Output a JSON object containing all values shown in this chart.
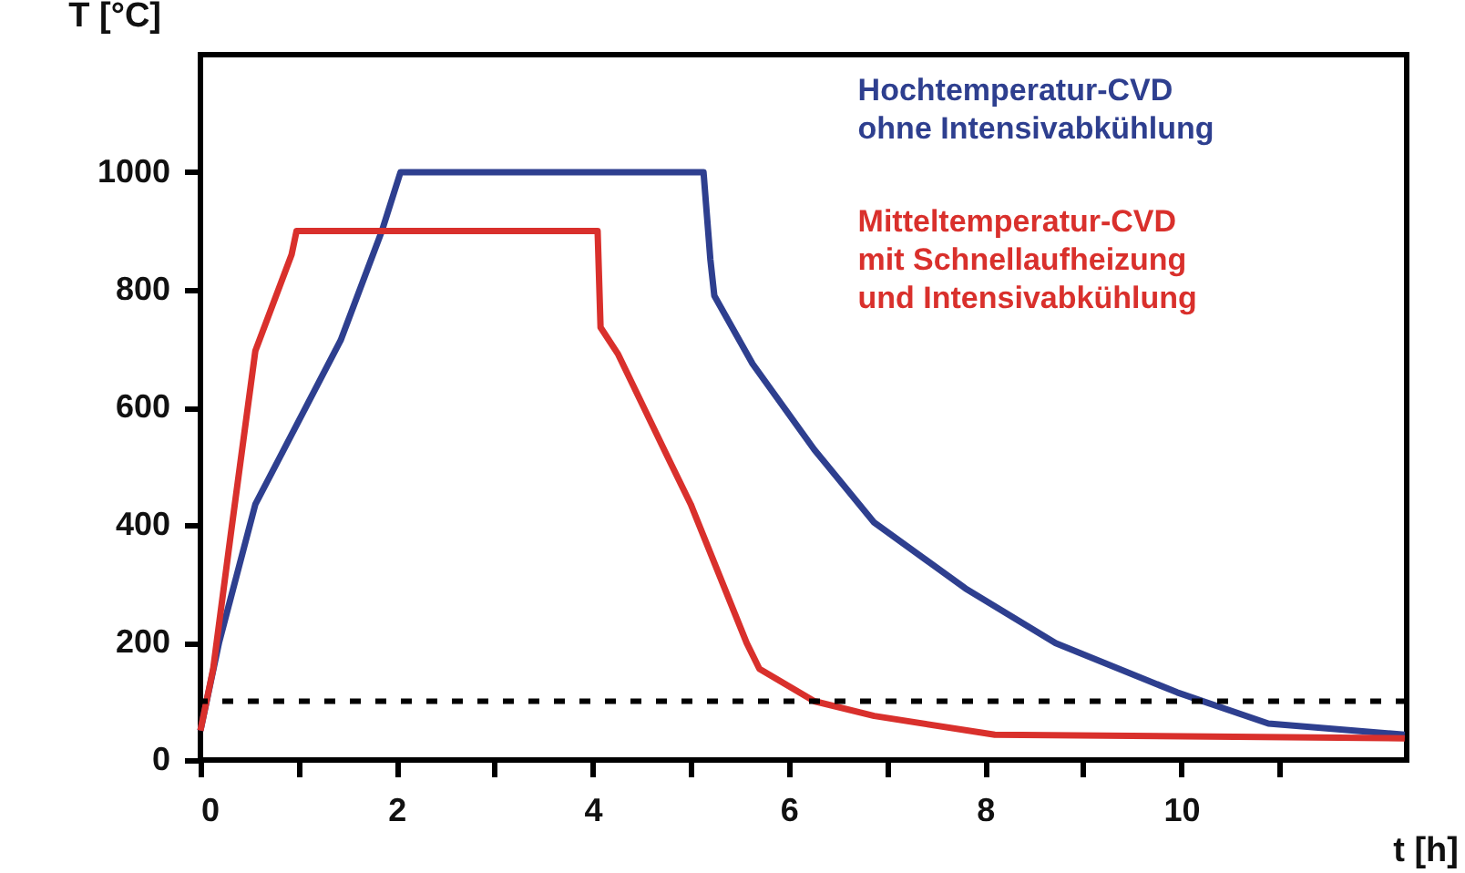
{
  "chart_data": {
    "type": "line",
    "xlabel": "t [h]",
    "ylabel": "T [°C]",
    "xlim": [
      0,
      12.3
    ],
    "ylim": [
      0,
      1200
    ],
    "xticks": [
      0,
      {
        "value": 1,
        "label": null
      },
      2,
      {
        "value": 3,
        "label": null
      },
      4,
      {
        "value": 5,
        "label": null
      },
      6,
      {
        "value": 7,
        "label": null
      },
      8,
      {
        "value": 9,
        "label": null
      },
      10,
      {
        "value": 11,
        "label": null
      }
    ],
    "yticks": [
      0,
      200,
      400,
      600,
      800,
      1000
    ],
    "grid": false,
    "legend": false,
    "marker": "none",
    "line_style": "solid",
    "series": [
      {
        "name": "Hochtemperatur-CVD\nohne Intensivabkühlung",
        "color": "#2e3f8f",
        "x": [
          0,
          0.19,
          0.56,
          1.43,
          1.85,
          2.04,
          5.13,
          5.2,
          5.24,
          5.63,
          6.26,
          6.87,
          7.8,
          8.72,
          9.96,
          10.89,
          12.28
        ],
        "values": [
          50,
          200,
          435,
          714,
          900,
          1000,
          1000,
          851,
          790,
          674,
          528,
          404,
          292,
          199,
          115,
          62,
          43
        ]
      },
      {
        "name": "Mitteltemperatur-CVD\nmit Schnellaufheizung\nund Intensivabkühlung",
        "color": "#d9302c",
        "x": [
          0,
          0.13,
          0.31,
          0.56,
          0.93,
          0.98,
          4.05,
          4.08,
          4.26,
          4.76,
          5.0,
          5.57,
          5.7,
          6.26,
          6.87,
          8.1,
          12.28
        ],
        "values": [
          50,
          155,
          385,
          696,
          860,
          900,
          900,
          736,
          690,
          517,
          435,
          199,
          155,
          100,
          75,
          43,
          37
        ]
      }
    ],
    "ref_lines": [
      {
        "axis": "y",
        "value": 100,
        "color": "#000000",
        "line_style": "dashed"
      }
    ]
  }
}
